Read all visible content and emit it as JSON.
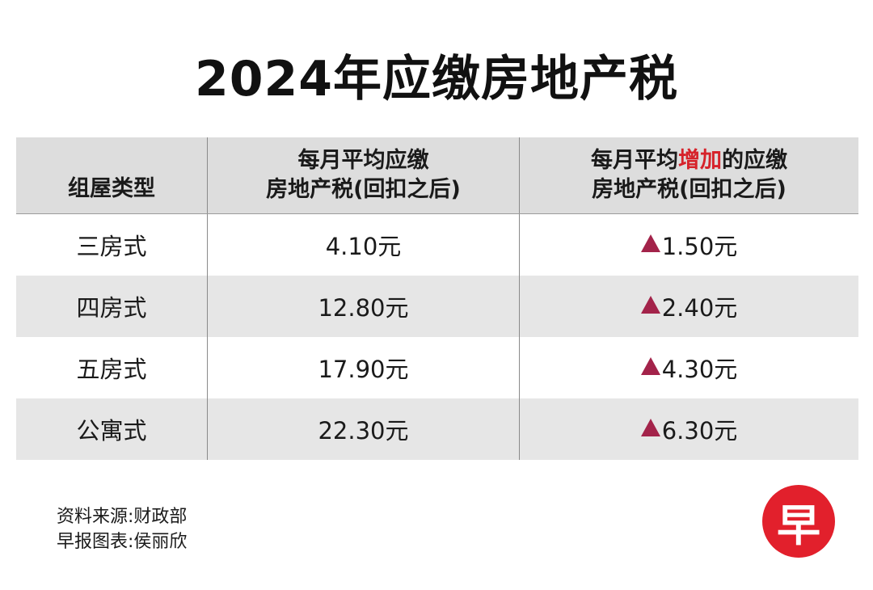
{
  "title": "2024年应缴房地产税",
  "table": {
    "headers": {
      "col1": "组屋类型",
      "col2_line1": "每月平均应缴",
      "col2_line2": "房地产税(回扣之后)",
      "col3_line1_pre": "每月平均",
      "col3_line1_highlight": "增加",
      "col3_line1_post": "的应缴",
      "col3_line2": "房地产税(回扣之后)"
    },
    "rows": [
      {
        "type": "三房式",
        "monthly_tax": "4.10元",
        "increase": "1.50元"
      },
      {
        "type": "四房式",
        "monthly_tax": "12.80元",
        "increase": "2.40元"
      },
      {
        "type": "五房式",
        "monthly_tax": "17.90元",
        "increase": "4.30元"
      },
      {
        "type": "公寓式",
        "monthly_tax": "22.30元",
        "increase": "6.30元"
      }
    ]
  },
  "footer": {
    "source": "资料来源:财政部",
    "credit": "早报图表:侯丽欣"
  },
  "logo": {
    "char": "早",
    "color": "#e2202c"
  },
  "colors": {
    "highlight": "#d6222a",
    "up_arrow": "#a3234a",
    "header_bg": "#dddddd",
    "shaded_row": "#e6e6e6"
  },
  "icons": {
    "increase": "up-triangle-icon"
  }
}
